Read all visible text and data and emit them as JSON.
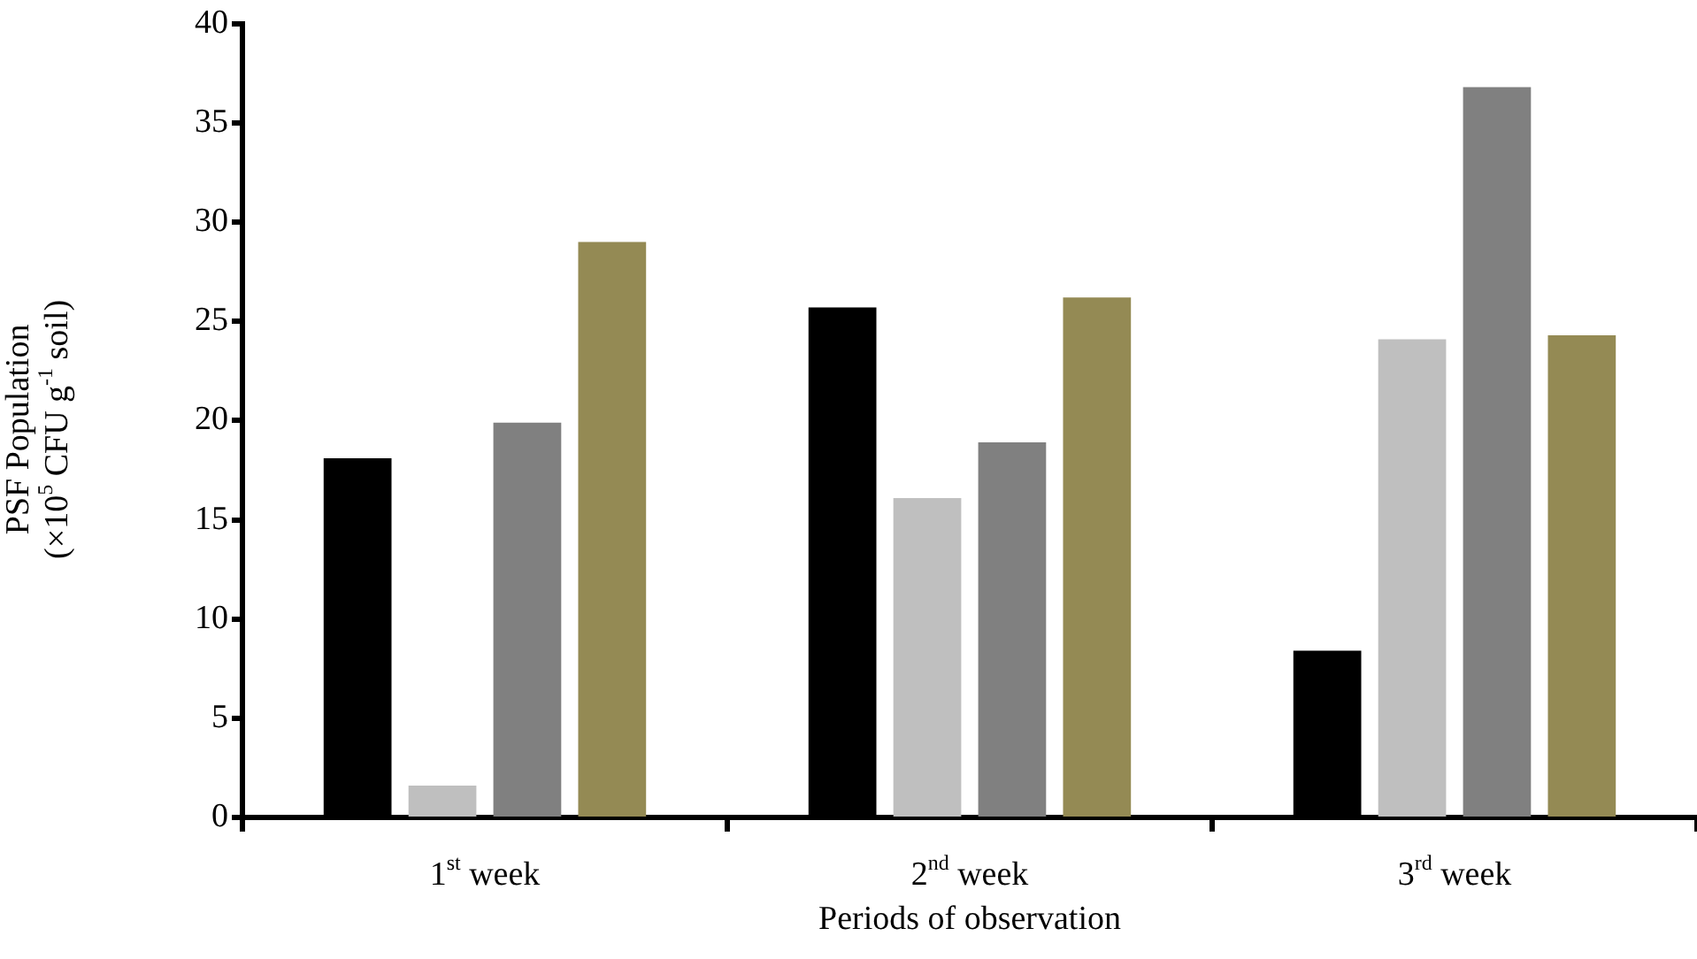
{
  "chart_data": {
    "type": "bar",
    "xlabel": "Periods of observation",
    "ylabel": "PSF Population\n(×10$^{5}$ CFU g$^{-1}$ soil)",
    "categories": [
      "1$^{st}$ week",
      "2$^{nd}$ week",
      "3$^{rd}$ week"
    ],
    "series": [
      {
        "color": "#000000",
        "values": [
          18.1,
          25.7,
          8.4
        ]
      },
      {
        "color": "#bfbfbf",
        "values": [
          1.6,
          16.1,
          24.1
        ]
      },
      {
        "color": "#808080",
        "values": [
          19.9,
          18.9,
          36.8
        ]
      },
      {
        "color": "#948a54",
        "values": [
          29.0,
          26.2,
          24.3
        ]
      }
    ],
    "ylim": [
      0,
      40
    ],
    "yticks": [
      0,
      5,
      10,
      15,
      20,
      25,
      30,
      35,
      40
    ],
    "grid": false,
    "legend": false
  }
}
